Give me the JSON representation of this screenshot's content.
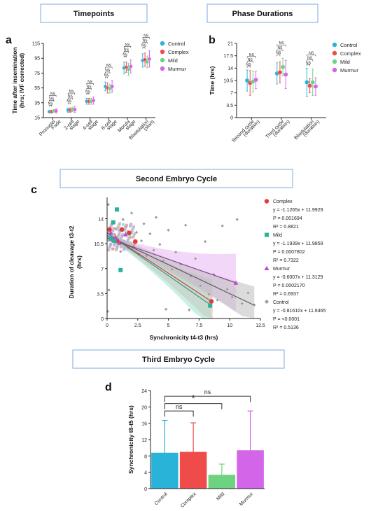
{
  "headers": {
    "timepoints": "Timepoints",
    "phase_durations": "Phase Durations",
    "second_cycle": "Second Embryo Cycle",
    "third_cycle": "Third Embryo Cycle"
  },
  "panel_letters": {
    "a": "a",
    "b": "b",
    "c": "c",
    "d": "d"
  },
  "colors": {
    "Control": "#2ab3d8",
    "Complex": "#ef4b4b",
    "Mild": "#6ed381",
    "Murmur": "#d365e9"
  },
  "chart_data": [
    {
      "id": "a",
      "type": "scatter",
      "ylabel": "Time after insemination (hrs; IVF corrected)",
      "ylabel_lines": [
        "Time after insemination",
        "(hrs; IVF corrected)"
      ],
      "ylim": [
        15,
        115
      ],
      "yticks": [
        "15",
        "35",
        "55",
        "75",
        "95",
        "115"
      ],
      "categories": [
        [
          "Pronuclei",
          "Fade"
        ],
        [
          "2-cell",
          "stage"
        ],
        [
          "4-cell",
          "stage"
        ],
        [
          "8-cell",
          "stage"
        ],
        [
          "Morula",
          "stage"
        ],
        [
          "Blastulation",
          "(start)"
        ]
      ],
      "legend": [
        "Control",
        "Complex",
        "Mild",
        "Murmur"
      ],
      "series": [
        {
          "name": "Control",
          "values": [
            23,
            25,
            37,
            57,
            82,
            92
          ],
          "err": [
            2,
            3,
            4,
            6,
            8,
            9
          ]
        },
        {
          "name": "Complex",
          "values": [
            23,
            25,
            37,
            55,
            83,
            93
          ],
          "err": [
            2,
            3,
            4,
            7,
            7,
            9
          ]
        },
        {
          "name": "Mild",
          "values": [
            24,
            26,
            37,
            54,
            80,
            90
          ],
          "err": [
            2,
            3,
            4,
            6,
            8,
            8
          ]
        },
        {
          "name": "Murmur",
          "values": [
            24,
            26,
            38,
            57,
            84,
            94
          ],
          "err": [
            3,
            4,
            5,
            8,
            9,
            11
          ]
        }
      ],
      "annotations": "NS",
      "grid": false
    },
    {
      "id": "b",
      "type": "scatter",
      "ylabel": "Time (hrs)",
      "ylim": [
        0,
        21
      ],
      "yticks": [
        "0",
        "3.5",
        "7",
        "10.5",
        "14",
        "17.5",
        "21"
      ],
      "categories": [
        [
          "Second cycle",
          "(duration)"
        ],
        [
          "Third cycle",
          "(duration)"
        ],
        [
          "Blastulation",
          "(duration)"
        ]
      ],
      "legend": [
        "Control",
        "Complex",
        "Mild",
        "Murmur"
      ],
      "series": [
        {
          "name": "Control",
          "values": [
            10.5,
            12.5,
            10
          ],
          "err": [
            3,
            3,
            4
          ]
        },
        {
          "name": "Complex",
          "values": [
            9.8,
            12.8,
            9
          ],
          "err": [
            3.5,
            3,
            2
          ]
        },
        {
          "name": "Mild",
          "values": [
            10.2,
            14.3,
            10
          ],
          "err": [
            3,
            2.5,
            3.8
          ]
        },
        {
          "name": "Murmur",
          "values": [
            10.7,
            12.2,
            8.8
          ],
          "err": [
            2.5,
            4,
            2.5
          ]
        }
      ],
      "annotations": "NS",
      "grid": false
    },
    {
      "id": "c",
      "type": "scatter",
      "xlabel": "Synchronicity t4-t3 (hrs)",
      "ylabel": "Duration of cleavage t3-t2 (hrs)",
      "ylabel_lines": [
        "Duration of cleavage t3-t2",
        "(hrs)"
      ],
      "xlim": [
        0,
        12.5
      ],
      "ylim": [
        0,
        17
      ],
      "xticks": [
        "0",
        "2.5",
        "5",
        "7.5",
        "10",
        "12.5"
      ],
      "yticks": [
        "0",
        "3.5",
        "7",
        "10.5",
        "14"
      ],
      "series": [
        {
          "name": "Complex",
          "slope": -1.1265,
          "intercept": 11.9929,
          "x_range": [
            0,
            8.6
          ],
          "points": [
            [
              0.2,
              12.5
            ],
            [
              0.5,
              11.0
            ],
            [
              1.2,
              12.5
            ],
            [
              1.8,
              12.0
            ],
            [
              2.3,
              10.8
            ],
            [
              0.8,
              10.9
            ],
            [
              8.5,
              2.4
            ]
          ],
          "stats": [
            "y = -1.1265x + 11.9929",
            "P = 0.001694",
            "R² = 0.8821"
          ]
        },
        {
          "name": "Mild",
          "slope": -1.1939,
          "intercept": 11.9859,
          "x_range": [
            0,
            8.5
          ],
          "points": [
            [
              0.5,
              13.5
            ],
            [
              0.8,
              15.3
            ],
            [
              0.3,
              11.2
            ],
            [
              0.6,
              10.9
            ],
            [
              1.1,
              6.8
            ],
            [
              8.4,
              1.8
            ]
          ],
          "stats": [
            "y = -1.1939x + 11.9859",
            "P = 0.0007802",
            "R² = 0.7322"
          ]
        },
        {
          "name": "Murmur",
          "slope": -0.6007,
          "intercept": 11.3129,
          "x_range": [
            0,
            10.5
          ],
          "points": [
            [
              0.3,
              12.0
            ],
            [
              0.7,
              11.4
            ],
            [
              1.0,
              10.6
            ],
            [
              1.5,
              11.8
            ],
            [
              10.5,
              5.0
            ]
          ],
          "stats": [
            "y = -0.6007x + 11.3129",
            "P = 0.0002170",
            "R² = 0.6937"
          ]
        },
        {
          "name": "Control",
          "slope": -0.8161,
          "intercept": 11.6465,
          "x_range": [
            0,
            12
          ],
          "points": [
            [
              0.1,
              12.0
            ],
            [
              0.2,
              11.3
            ],
            [
              0.3,
              10.4
            ],
            [
              0.4,
              13.2
            ],
            [
              0.5,
              9.8
            ],
            [
              0.6,
              11.8
            ],
            [
              0.7,
              12.6
            ],
            [
              0.8,
              10.1
            ],
            [
              0.9,
              11.1
            ],
            [
              1.0,
              12.3
            ],
            [
              1.1,
              9.4
            ],
            [
              1.2,
              11.6
            ],
            [
              1.3,
              13.9
            ],
            [
              1.4,
              10.6
            ],
            [
              1.5,
              12.9
            ],
            [
              1.7,
              9.9
            ],
            [
              1.9,
              11.4
            ],
            [
              2.0,
              14.8
            ],
            [
              2.2,
              10.2
            ],
            [
              2.4,
              12.1
            ],
            [
              2.6,
              9.1
            ],
            [
              2.8,
              10.9
            ],
            [
              3.0,
              13.3
            ],
            [
              3.2,
              8.8
            ],
            [
              3.5,
              11.9
            ],
            [
              3.8,
              9.6
            ],
            [
              4.0,
              14.2
            ],
            [
              4.3,
              10.4
            ],
            [
              4.6,
              8.1
            ],
            [
              5.0,
              12.4
            ],
            [
              5.3,
              6.9
            ],
            [
              5.6,
              9.3
            ],
            [
              6.0,
              7.6
            ],
            [
              6.4,
              13.1
            ],
            [
              6.8,
              5.9
            ],
            [
              7.2,
              8.4
            ],
            [
              7.6,
              4.6
            ],
            [
              8.0,
              10.8
            ],
            [
              8.3,
              3.4
            ],
            [
              8.7,
              6.2
            ],
            [
              9.0,
              2.6
            ],
            [
              9.4,
              13.0
            ],
            [
              9.8,
              4.1
            ],
            [
              10.2,
              3.0
            ],
            [
              10.6,
              13.9
            ],
            [
              11.0,
              2.1
            ],
            [
              11.5,
              3.6
            ],
            [
              12.0,
              1.9
            ],
            [
              0.05,
              1.0
            ],
            [
              0.1,
              16.0
            ],
            [
              0.15,
              4.0
            ],
            [
              4.8,
              1.3
            ],
            [
              6.7,
              1.2
            ]
          ],
          "stats": [
            "y = -0.81610x + 11.6465",
            "P = <0.0001",
            "R² = 0.5136"
          ]
        }
      ]
    },
    {
      "id": "d",
      "type": "bar",
      "ylabel": "Synchronicity t8-t5 (hrs)",
      "ylim": [
        0,
        24
      ],
      "yticks": [
        "0",
        "4",
        "8",
        "12",
        "16",
        "20",
        "24"
      ],
      "categories": [
        "Control",
        "Complex",
        "Mild",
        "Murmur"
      ],
      "values": [
        8.7,
        8.9,
        3.3,
        9.3
      ],
      "err": [
        8.0,
        7.2,
        2.7,
        9.7
      ],
      "comparisons": [
        {
          "from": "Control",
          "to": "Complex",
          "label": "ns"
        },
        {
          "from": "Control",
          "to": "Mild",
          "label": "*"
        },
        {
          "from": "Control",
          "to": "Murmur",
          "label": "ns"
        }
      ]
    }
  ]
}
